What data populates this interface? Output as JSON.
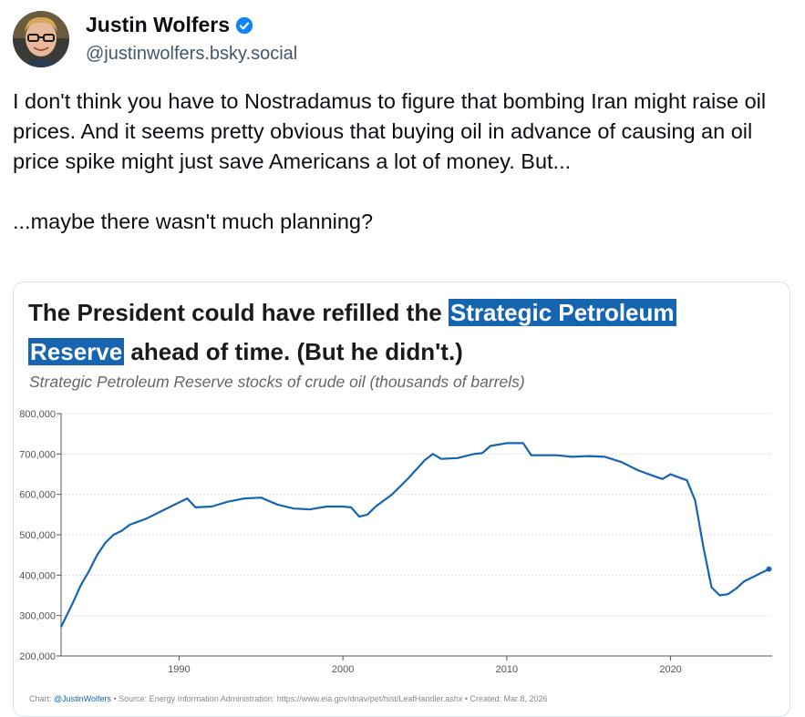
{
  "post": {
    "author_name": "Justin Wolfers",
    "handle": "@justinwolfers.bsky.social",
    "text_paragraph1": "I don't think you have to Nostradamus  to figure that bombing Iran might raise oil prices. And it seems pretty obvious that buying oil in advance of causing an oil price spike might just save Americans a lot of money. But...",
    "text_paragraph2": "...maybe there wasn't much planning?"
  },
  "colors": {
    "accent": "#1764b0",
    "verified": "#1083fe",
    "line": "#1764b0"
  },
  "icons": {
    "verified": "verified-check-icon",
    "avatar": "avatar-photo"
  },
  "chart_card": {
    "title_part1": "The President could have refilled the ",
    "title_highlight1": "Strategic Petroleum",
    "title_highlight2": "Reserve",
    "title_part2": " ahead of time. (But he didn't.)",
    "subtitle": "Strategic Petroleum Reserve stocks of crude oil (thousands of barrels)",
    "footer_prefix": "Chart: ",
    "footer_author": "@JustinWolfers",
    "footer_rest": " • Source: Energy Information Administration: https://www.eia.gov/dnav/pet/hist/LeafHandler.ashx • Created: Mar 8, 2026"
  },
  "chart_data": {
    "type": "line",
    "title": "The President could have refilled the Strategic Petroleum Reserve ahead of time. (But he didn't.)",
    "subtitle": "Strategic Petroleum Reserve stocks of crude oil (thousands of barrels)",
    "xlabel": "",
    "ylabel": "",
    "xlim": [
      1982.8,
      2026.2
    ],
    "ylim": [
      200000,
      800000
    ],
    "x_ticks": [
      1990,
      2000,
      2010,
      2020
    ],
    "x_tick_labels": [
      "1990",
      "2000",
      "2010",
      "2020"
    ],
    "y_ticks": [
      200000,
      300000,
      400000,
      500000,
      600000,
      700000,
      800000
    ],
    "y_tick_labels": [
      "200,000",
      "300,000",
      "400,000",
      "500,000",
      "600,000",
      "700,000",
      "800,000"
    ],
    "grid": "horizontal",
    "legend": "none",
    "series": [
      {
        "x": [
          1982.8,
          1983.5,
          1984.0,
          1984.5,
          1985.0,
          1985.5,
          1986.0,
          1986.5,
          1987.0,
          1988.0,
          1989.0,
          1990.0,
          1990.5,
          1991.0,
          1992.0,
          1993.0,
          1994.0,
          1995.0,
          1996.0,
          1997.0,
          1998.0,
          1999.0,
          2000.0,
          2000.5,
          2001.0,
          2001.5,
          2002.0,
          2003.0,
          2004.0,
          2005.0,
          2005.5,
          2006.0,
          2007.0,
          2008.0,
          2008.5,
          2009.0,
          2010.0,
          2011.0,
          2011.5,
          2012.0,
          2013.0,
          2014.0,
          2015.0,
          2016.0,
          2017.0,
          2018.0,
          2019.0,
          2019.5,
          2020.0,
          2020.3,
          2021.0,
          2021.5,
          2022.0,
          2022.5,
          2023.0,
          2023.5,
          2024.0,
          2024.5,
          2025.0,
          2025.5,
          2026.0
        ],
        "y": [
          272000,
          330000,
          375000,
          410000,
          450000,
          480000,
          500000,
          510000,
          525000,
          540000,
          560000,
          580000,
          590000,
          568000,
          570000,
          582000,
          590000,
          592000,
          575000,
          565000,
          563000,
          570000,
          570000,
          568000,
          545000,
          550000,
          570000,
          600000,
          640000,
          685000,
          700000,
          688000,
          690000,
          700000,
          702000,
          720000,
          727000,
          727000,
          697000,
          697000,
          697000,
          693000,
          695000,
          693000,
          680000,
          660000,
          645000,
          638000,
          650000,
          645000,
          635000,
          585000,
          470000,
          370000,
          350000,
          353000,
          367000,
          385000,
          395000,
          405000,
          415000
        ]
      }
    ]
  }
}
